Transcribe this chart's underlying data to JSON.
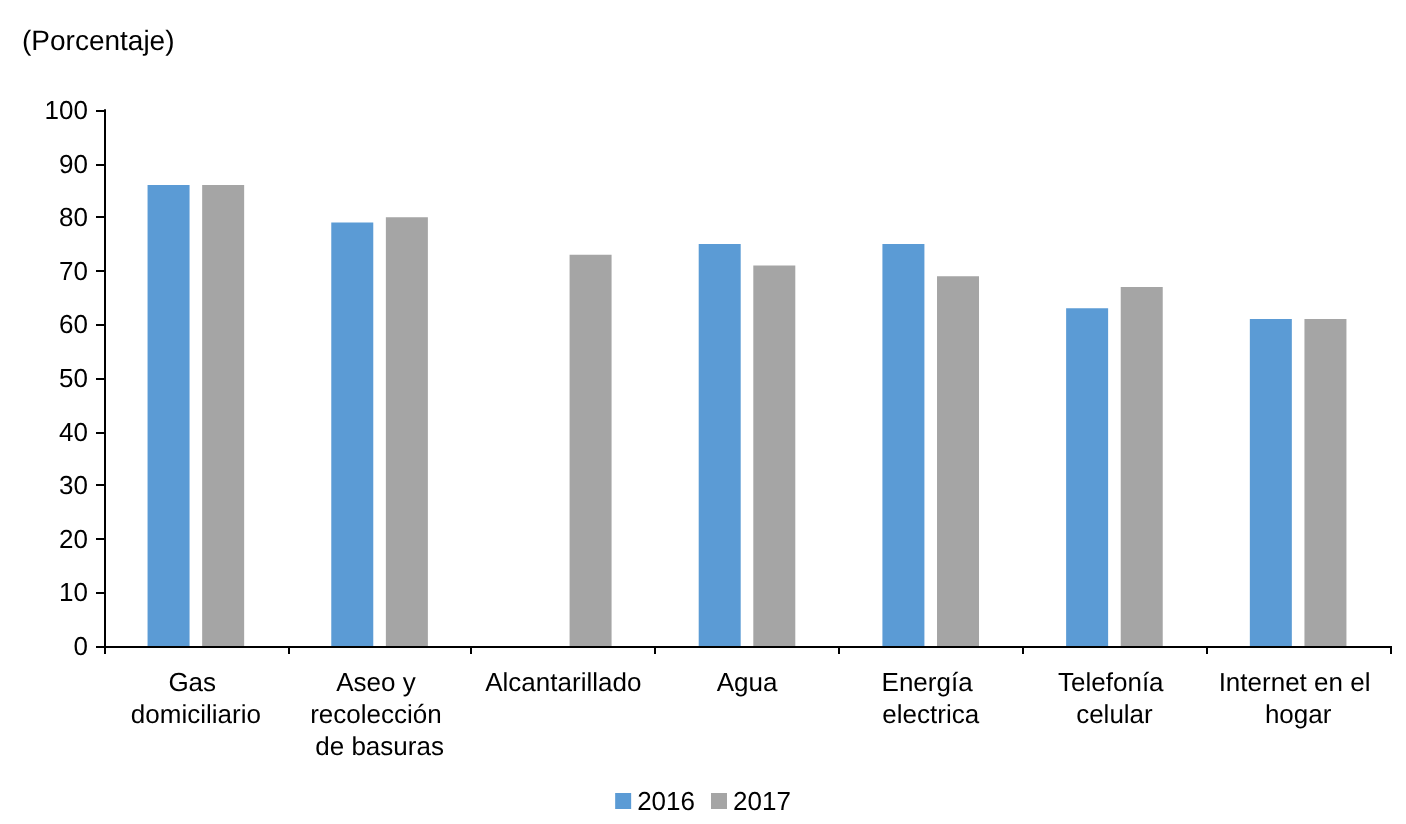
{
  "chart_data": {
    "type": "bar",
    "ylabel": "(Porcentaje)",
    "categories": [
      "Gas domiciliario",
      "Aseo y recolección de basuras",
      "Alcantarillado",
      "Agua",
      "Energía electrica",
      "Telefonía celular",
      "Internet en el hogar"
    ],
    "series": [
      {
        "name": "2016",
        "color": "#5b9bd5",
        "values": [
          86,
          79,
          null,
          75,
          75,
          63,
          61
        ]
      },
      {
        "name": "2017",
        "color": "#a5a5a5",
        "values": [
          86,
          80,
          73,
          71,
          69,
          67,
          61
        ]
      }
    ],
    "ylim": [
      0,
      100
    ],
    "yticks": [
      0,
      10,
      20,
      30,
      40,
      50,
      60,
      70,
      80,
      90,
      100
    ],
    "grid": false,
    "legend": "bottom"
  }
}
